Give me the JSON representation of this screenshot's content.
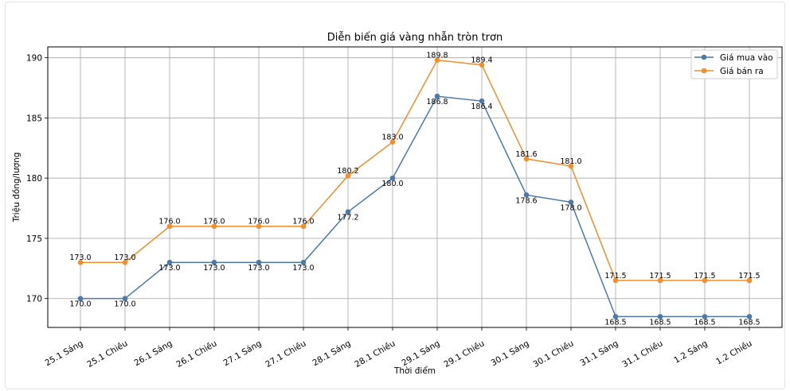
{
  "chart_data": {
    "type": "line",
    "title": "Diễn biến giá vàng nhẫn tròn trơn",
    "xlabel": "Thời điểm",
    "ylabel": "Triệu đồng/lượng",
    "categories": [
      "25.1 Sáng",
      "25.1 Chiều",
      "26.1 Sáng",
      "26.1 Chiều",
      "27.1 Sáng",
      "27.1 Chiều",
      "28.1 Sáng",
      "28.1 Chiều",
      "29.1 Sáng",
      "29.1 Chiều",
      "30.1 Sáng",
      "30.1 Chiều",
      "31.1 Sáng",
      "31.1 Chiều",
      "1.2 Sáng",
      "1.2 Chiều"
    ],
    "series": [
      {
        "name": "Giá mua vào",
        "color": "#4e79a7",
        "values": [
          170.0,
          170.0,
          173.0,
          173.0,
          173.0,
          173.0,
          177.2,
          180.0,
          186.8,
          186.4,
          178.6,
          178.0,
          168.5,
          168.5,
          168.5,
          168.5
        ]
      },
      {
        "name": "Giá bán ra",
        "color": "#f28e2b",
        "values": [
          173.0,
          173.0,
          176.0,
          176.0,
          176.0,
          176.0,
          180.2,
          183.0,
          189.8,
          189.4,
          181.6,
          181.0,
          171.5,
          171.5,
          171.5,
          171.5
        ]
      }
    ],
    "ylim": [
      167.6,
      190.9
    ],
    "yticks": [
      170,
      175,
      180,
      185,
      190
    ],
    "grid": true,
    "legend": "top-right"
  }
}
